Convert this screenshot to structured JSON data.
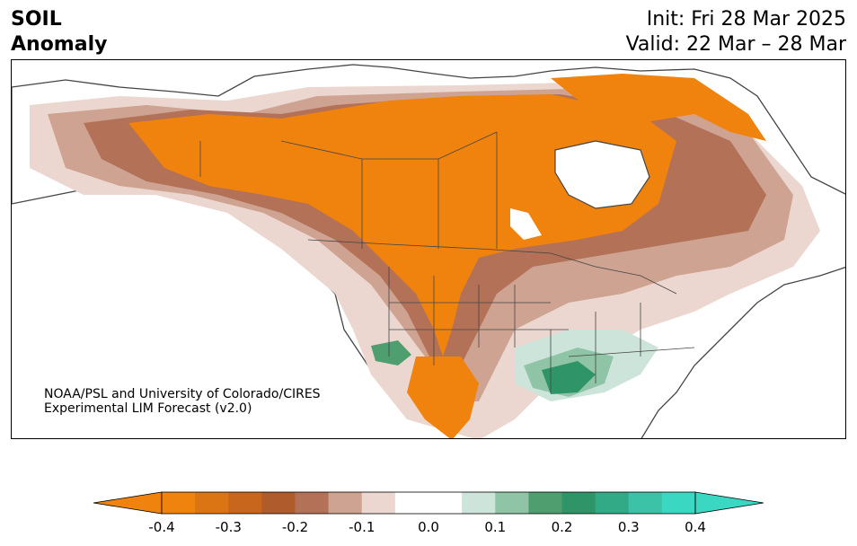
{
  "header": {
    "title_line1": "SOIL",
    "title_line2": "Anomaly",
    "init_text": "Init: Fri 28 Mar 2025",
    "valid_text": "Valid: 22 Mar – 28 Mar"
  },
  "credit": {
    "line1": "NOAA/PSL and University of Colorado/CIRES",
    "line2": "Experimental LIM Forecast (v2.0)"
  },
  "colorbar": {
    "levels": [
      -0.4,
      -0.35,
      -0.3,
      -0.25,
      -0.2,
      -0.15,
      -0.1,
      -0.05,
      0.05,
      0.1,
      0.15,
      0.2,
      0.25,
      0.3,
      0.35,
      0.4
    ],
    "colors": [
      "#f0830d",
      "#db7412",
      "#c7661c",
      "#b05b2c",
      "#b37158",
      "#cea391",
      "#ebd7cf",
      "#ffffff",
      "#ffffff",
      "#cde4da",
      "#8fc4a7",
      "#4e9e70",
      "#2f9468",
      "#33aa86",
      "#3cc3a7",
      "#3ad7c3"
    ],
    "extend_low_color": "#f0830d",
    "extend_high_color": "#3ad7c3",
    "tick_labels": [
      "-0.4",
      "-0.3",
      "-0.2",
      "-0.1",
      "0.0",
      "0.1",
      "0.2",
      "0.3",
      "0.4"
    ]
  },
  "map": {
    "region": "North America",
    "dry_color": "#f0830d",
    "wet_color": "#2f9468",
    "border_color": "#444444"
  }
}
